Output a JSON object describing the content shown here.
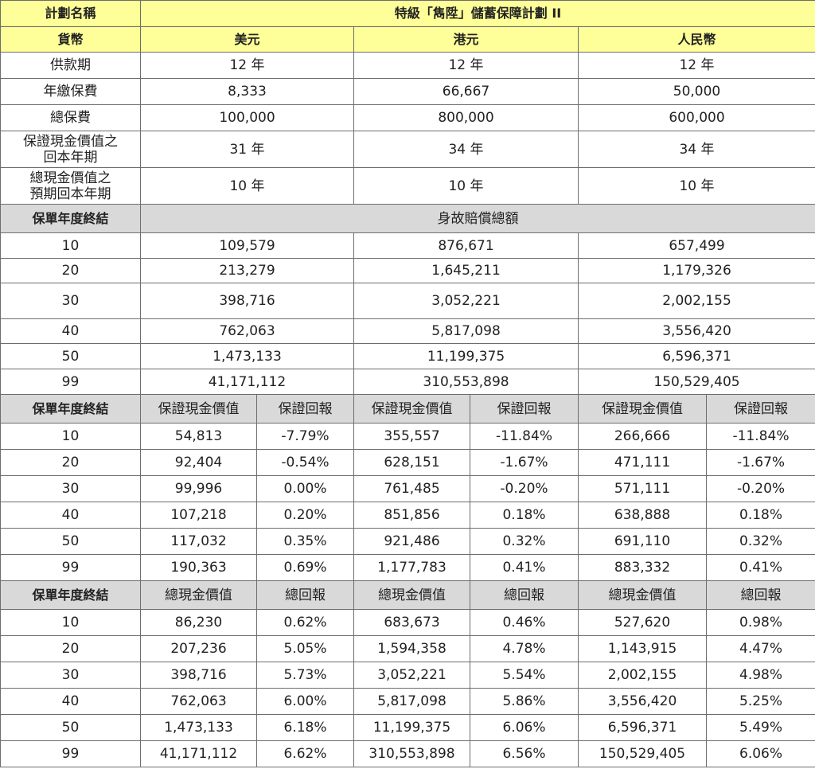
{
  "header": {
    "plan_label": "計劃名稱",
    "plan_name": "特級「雋陞」儲蓄保障計劃 II",
    "currency_label": "貨幣",
    "currencies": [
      "美元",
      "港元",
      "人民幣"
    ]
  },
  "summary_rows": [
    {
      "label": "供款期",
      "values": [
        "12 年",
        "12 年",
        "12 年"
      ]
    },
    {
      "label": "年繳保費",
      "values": [
        "8,333",
        "66,667",
        "50,000"
      ]
    },
    {
      "label": "總保費",
      "values": [
        "100,000",
        "800,000",
        "600,000"
      ]
    },
    {
      "label": "保證現金價值之\n回本年期",
      "values": [
        "31 年",
        "34 年",
        "34 年"
      ]
    },
    {
      "label": "總現金價值之\n預期回本年期",
      "values": [
        "10 年",
        "10 年",
        "10 年"
      ]
    }
  ],
  "death_section": {
    "year_label": "保單年度終結",
    "title": "身故賠償總額",
    "rows": [
      {
        "year": "10",
        "values": [
          "109,579",
          "876,671",
          "657,499"
        ]
      },
      {
        "year": "20",
        "values": [
          "213,279",
          "1,645,211",
          "1,179,326"
        ]
      },
      {
        "year": "30",
        "values": [
          "398,716",
          "3,052,221",
          "2,002,155"
        ]
      },
      {
        "year": "40",
        "values": [
          "762,063",
          "5,817,098",
          "3,556,420"
        ]
      },
      {
        "year": "50",
        "values": [
          "1,473,133",
          "11,199,375",
          "6,596,371"
        ]
      },
      {
        "year": "99",
        "values": [
          "41,171,112",
          "310,553,898",
          "150,529,405"
        ]
      }
    ]
  },
  "guaranteed_section": {
    "year_label": "保單年度終結",
    "col_value": "保證現金價值",
    "col_return": "保證回報",
    "rows": [
      {
        "year": "10",
        "values": [
          "54,813",
          "-7.79%",
          "355,557",
          "-11.84%",
          "266,666",
          "-11.84%"
        ]
      },
      {
        "year": "20",
        "values": [
          "92,404",
          "-0.54%",
          "628,151",
          "-1.67%",
          "471,111",
          "-1.67%"
        ]
      },
      {
        "year": "30",
        "values": [
          "99,996",
          "0.00%",
          "761,485",
          "-0.20%",
          "571,111",
          "-0.20%"
        ]
      },
      {
        "year": "40",
        "values": [
          "107,218",
          "0.20%",
          "851,856",
          "0.18%",
          "638,888",
          "0.18%"
        ]
      },
      {
        "year": "50",
        "values": [
          "117,032",
          "0.35%",
          "921,486",
          "0.32%",
          "691,110",
          "0.32%"
        ]
      },
      {
        "year": "99",
        "values": [
          "190,363",
          "0.69%",
          "1,177,783",
          "0.41%",
          "883,332",
          "0.41%"
        ]
      }
    ]
  },
  "total_section": {
    "year_label": "保單年度終結",
    "col_value": "總現金價值",
    "col_return": "總回報",
    "rows": [
      {
        "year": "10",
        "values": [
          "86,230",
          "0.62%",
          "683,673",
          "0.46%",
          "527,620",
          "0.98%"
        ]
      },
      {
        "year": "20",
        "values": [
          "207,236",
          "5.05%",
          "1,594,358",
          "4.78%",
          "1,143,915",
          "4.47%"
        ]
      },
      {
        "year": "30",
        "values": [
          "398,716",
          "5.73%",
          "3,052,221",
          "5.54%",
          "2,002,155",
          "4.98%"
        ]
      },
      {
        "year": "40",
        "values": [
          "762,063",
          "6.00%",
          "5,817,098",
          "5.86%",
          "3,556,420",
          "5.25%"
        ]
      },
      {
        "year": "50",
        "values": [
          "1,473,133",
          "6.18%",
          "11,199,375",
          "6.06%",
          "6,596,371",
          "5.49%"
        ]
      },
      {
        "year": "99",
        "values": [
          "41,171,112",
          "6.62%",
          "310,553,898",
          "6.56%",
          "150,529,405",
          "6.06%"
        ]
      }
    ]
  }
}
